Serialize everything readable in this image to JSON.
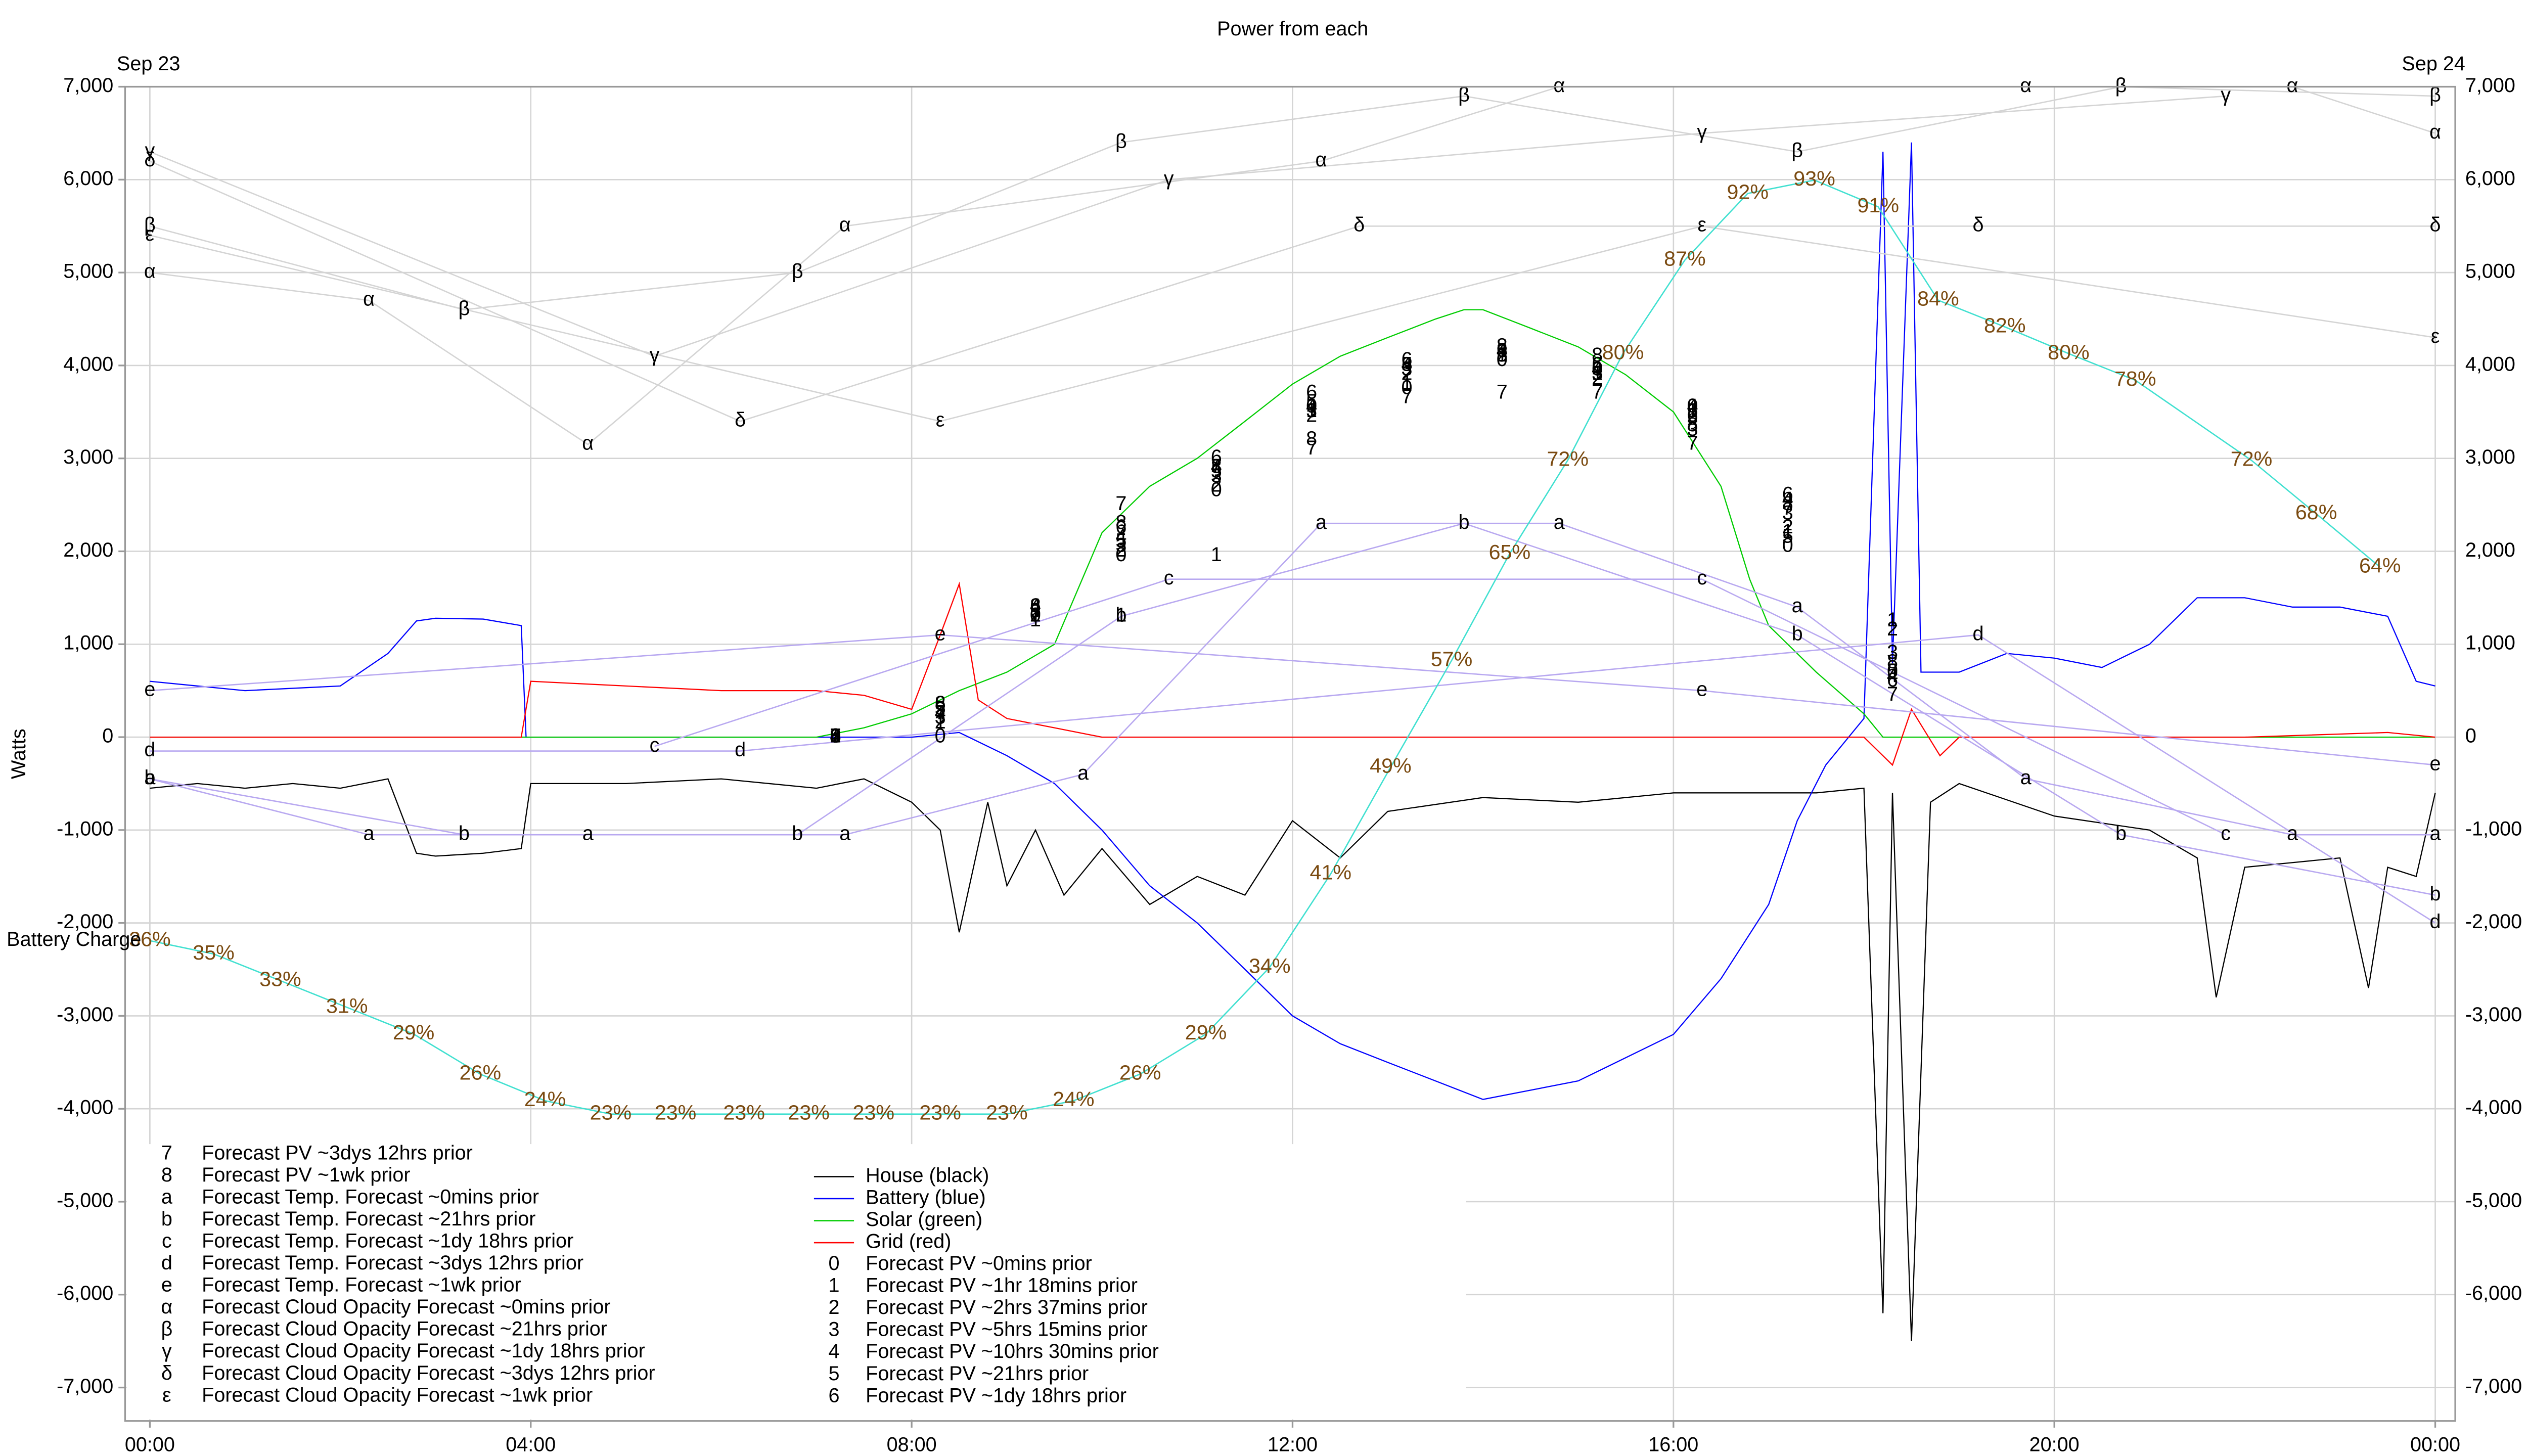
{
  "chart_data": {
    "type": "line",
    "title": "Power from each",
    "date_labels": [
      "Sep 23",
      "Sep 24"
    ],
    "ylabel": "Watts",
    "xlim": [
      -0.26,
      24.21
    ],
    "ylim": [
      -7360,
      7000
    ],
    "y2lim": [
      0,
      100
    ],
    "grid": true,
    "xticks": [
      {
        "value": 0,
        "label": "00:00"
      },
      {
        "value": 4,
        "label": "04:00"
      },
      {
        "value": 8,
        "label": "08:00"
      },
      {
        "value": 12,
        "label": "12:00"
      },
      {
        "value": 16,
        "label": "16:00"
      },
      {
        "value": 20,
        "label": "20:00"
      },
      {
        "value": 24,
        "label": "00:00"
      }
    ],
    "yticks": [
      {
        "value": -7000,
        "label": "-7,000"
      },
      {
        "value": -6000,
        "label": "-6,000"
      },
      {
        "value": -5000,
        "label": "-5,000"
      },
      {
        "value": -4000,
        "label": "-4,000"
      },
      {
        "value": -3000,
        "label": "-3,000"
      },
      {
        "value": -2000,
        "label": "-2,000"
      },
      {
        "value": -1000,
        "label": "-1,000"
      },
      0,
      {
        "value": 1000,
        "label": "1,000"
      },
      {
        "value": 2000,
        "label": "2,000"
      },
      {
        "value": 3000,
        "label": "3,000"
      },
      {
        "value": 4000,
        "label": "4,000"
      },
      {
        "value": 5000,
        "label": "5,000"
      },
      {
        "value": 6000,
        "label": "6,000"
      },
      {
        "value": 7000,
        "label": "7,000"
      }
    ],
    "series": [
      {
        "name": "House (black)",
        "color": "#000000",
        "x": [
          0,
          0.5,
          1,
          1.5,
          2,
          2.5,
          2.8,
          3,
          3.5,
          3.9,
          4,
          5,
          6,
          7,
          7.5,
          8,
          8.3,
          8.5,
          8.8,
          9,
          9.3,
          9.6,
          10,
          10.5,
          11,
          11.5,
          12,
          12.5,
          13,
          14,
          15,
          16,
          17,
          17.5,
          18,
          18.2,
          18.3,
          18.5,
          18.7,
          19,
          20,
          21,
          21.5,
          21.7,
          22,
          22.5,
          23,
          23.3,
          23.5,
          23.8,
          24
        ],
        "values": [
          -550,
          -500,
          -550,
          -500,
          -550,
          -450,
          -1250,
          -1280,
          -1250,
          -1200,
          -500,
          -500,
          -450,
          -550,
          -450,
          -700,
          -1000,
          -2100,
          -700,
          -1600,
          -1000,
          -1700,
          -1200,
          -1800,
          -1500,
          -1700,
          -900,
          -1300,
          -800,
          -650,
          -700,
          -600,
          -600,
          -600,
          -550,
          -6200,
          -600,
          -6500,
          -700,
          -500,
          -850,
          -1000,
          -1300,
          -2800,
          -1400,
          -1350,
          -1300,
          -2700,
          -1400,
          -1500,
          -600
        ]
      },
      {
        "name": "Battery (blue)",
        "color": "#0000ff",
        "x": [
          0,
          1,
          2,
          2.5,
          2.8,
          3,
          3.5,
          3.9,
          3.95,
          5,
          7,
          8,
          8.5,
          9,
          9.5,
          10,
          10.5,
          11,
          11.5,
          12,
          12.5,
          13,
          13.5,
          14,
          15,
          16,
          16.5,
          17,
          17.3,
          17.6,
          18,
          18.2,
          18.3,
          18.5,
          18.6,
          19,
          19.5,
          20,
          20.5,
          21,
          21.5,
          22,
          22.5,
          23,
          23.5,
          23.8,
          24
        ],
        "values": [
          600,
          500,
          550,
          900,
          1250,
          1280,
          1270,
          1200,
          0,
          0,
          0,
          0,
          50,
          -200,
          -500,
          -1000,
          -1600,
          -2000,
          -2500,
          -3000,
          -3300,
          -3500,
          -3700,
          -3900,
          -3700,
          -3200,
          -2600,
          -1800,
          -900,
          -300,
          200,
          6300,
          800,
          6400,
          700,
          700,
          900,
          850,
          750,
          1000,
          1500,
          1500,
          1400,
          1400,
          1300,
          600,
          550
        ]
      },
      {
        "name": "Solar (green)",
        "color": "#00cc00",
        "x": [
          0,
          7,
          7.5,
          8,
          8.5,
          9,
          9.5,
          10,
          10.5,
          11,
          11.5,
          12,
          12.5,
          13,
          13.5,
          13.8,
          14,
          14.5,
          15,
          15.5,
          16,
          16.5,
          16.8,
          17,
          17.5,
          18,
          18.2,
          24
        ],
        "values": [
          0,
          0,
          100,
          250,
          500,
          700,
          1000,
          2200,
          2700,
          3000,
          3400,
          3800,
          4100,
          4300,
          4500,
          4600,
          4600,
          4400,
          4200,
          3900,
          3500,
          2700,
          1700,
          1200,
          700,
          250,
          0,
          0
        ]
      },
      {
        "name": "Grid (red)",
        "color": "#ff0000",
        "x": [
          0,
          3.9,
          4,
          5,
          6,
          7,
          7.5,
          8,
          8.3,
          8.5,
          8.7,
          9,
          9.5,
          10,
          12,
          17,
          18,
          18.3,
          18.5,
          18.8,
          19,
          22,
          23.5,
          24
        ],
        "values": [
          0,
          0,
          600,
          550,
          500,
          500,
          450,
          300,
          1100,
          1650,
          400,
          200,
          100,
          0,
          0,
          0,
          0,
          -300,
          300,
          -200,
          0,
          0,
          50,
          0
        ]
      },
      {
        "name": "Forecast PV ~0mins prior",
        "marker": "0",
        "color": null,
        "x": [
          7.2,
          8.3,
          9.3,
          10.2,
          11.2,
          12.2,
          13.2,
          14.2,
          15.2,
          16.2,
          17.2,
          18.3
        ],
        "values": [
          0,
          0,
          1300,
          1950,
          2650,
          3550,
          3750,
          4050,
          3950,
          3550,
          2050,
          700
        ]
      },
      {
        "name": "Forecast PV ~1hr 18mins prior",
        "marker": "1",
        "color": null,
        "x": [
          7.2,
          8.3,
          9.3,
          10.2,
          11.2,
          12.2,
          13.2,
          14.2,
          15.2,
          16.2,
          17.2,
          18.3
        ],
        "values": [
          0,
          150,
          1250,
          1300,
          1950,
          3500,
          3800,
          4100,
          3900,
          3500,
          2200,
          1250
        ]
      },
      {
        "name": "Forecast PV ~2hrs 37mins prior",
        "marker": "2",
        "color": null,
        "x": [
          7.2,
          8.3,
          9.3,
          10.2,
          11.2,
          12.2,
          13.2,
          14.2,
          15.2,
          16.2,
          17.2,
          18.3
        ],
        "values": [
          0,
          150,
          1300,
          2000,
          2700,
          3450,
          3900,
          4100,
          3850,
          3450,
          2250,
          1150
        ]
      },
      {
        "name": "Forecast PV ~5hrs 15mins prior",
        "marker": "3",
        "color": null,
        "x": [
          7.2,
          8.3,
          9.3,
          10.2,
          11.2,
          12.2,
          13.2,
          14.2,
          15.2,
          16.2,
          17.2,
          18.3
        ],
        "values": [
          0,
          200,
          1350,
          2050,
          2800,
          3500,
          3950,
          4150,
          3900,
          3300,
          2400,
          900
        ]
      },
      {
        "name": "Forecast PV ~10hrs 30mins prior",
        "marker": "4",
        "color": null,
        "x": [
          7.2,
          8.3,
          9.3,
          10.2,
          11.2,
          12.2,
          13.2,
          14.2,
          15.2,
          16.2,
          17.2,
          18.3
        ],
        "values": [
          0,
          250,
          1400,
          2150,
          2900,
          3550,
          4000,
          4150,
          3950,
          3550,
          2550,
          650
        ]
      },
      {
        "name": "Forecast PV ~21hrs prior",
        "marker": "5",
        "color": null,
        "x": [
          7.2,
          8.3,
          9.3,
          10.2,
          11.2,
          12.2,
          13.2,
          14.2,
          15.2,
          16.2,
          17.2,
          18.3
        ],
        "values": [
          0,
          300,
          1350,
          2100,
          2850,
          3600,
          4000,
          4100,
          3900,
          3500,
          2150,
          700
        ]
      },
      {
        "name": "Forecast PV ~1dy 18hrs prior",
        "marker": "6",
        "color": null,
        "x": [
          7.2,
          8.3,
          9.3,
          10.2,
          11.2,
          12.2,
          13.2,
          14.2,
          15.2,
          16.2,
          17.2,
          18.3
        ],
        "values": [
          0,
          350,
          1400,
          2250,
          3000,
          3700,
          4050,
          4150,
          4000,
          3450,
          2600,
          600
        ]
      },
      {
        "name": "Forecast PV ~3dys 12hrs prior",
        "marker": "7",
        "color": null,
        "x": [
          7.2,
          8.3,
          9.3,
          10.2,
          11.2,
          12.2,
          13.2,
          14.2,
          15.2,
          16.2,
          17.2,
          18.3
        ],
        "values": [
          0,
          250,
          1300,
          2500,
          2900,
          3100,
          3650,
          3700,
          3700,
          3150,
          2450,
          450
        ]
      },
      {
        "name": "Forecast PV ~1wk prior",
        "marker": "8",
        "color": null,
        "x": [
          7.2,
          8.3,
          9.3,
          10.2,
          11.2,
          12.2,
          13.2,
          14.2,
          15.2,
          16.2,
          17.2,
          18.3
        ],
        "values": [
          0,
          350,
          1400,
          2300,
          2900,
          3200,
          4000,
          4200,
          4100,
          3350,
          2500,
          800
        ]
      },
      {
        "name": "Forecast Temp. Forecast ~0mins prior",
        "marker": "a",
        "color": "#b8a8f0",
        "x": [
          0,
          2.3,
          4.6,
          7.3,
          9.8,
          12.3,
          14.8,
          17.3,
          19.7,
          22.5,
          24
        ],
        "values": [
          -450,
          -1050,
          -1050,
          -1050,
          -400,
          2300,
          2300,
          1400,
          -450,
          -1050,
          -1050
        ]
      },
      {
        "name": "Forecast Temp. Forecast ~21hrs prior",
        "marker": "b",
        "color": "#b8a8f0",
        "x": [
          0,
          3.3,
          6.8,
          10.2,
          13.8,
          17.3,
          20.7,
          24
        ],
        "values": [
          -450,
          -1050,
          -1050,
          1300,
          2300,
          1100,
          -1050,
          -1700
        ]
      },
      {
        "name": "Forecast Temp. Forecast ~1dy 18hrs prior",
        "marker": "c",
        "color": "#b8a8f0",
        "x": [
          5.3,
          10.7,
          16.3,
          21.8
        ],
        "values": [
          -100,
          1700,
          1700,
          -1050
        ]
      },
      {
        "name": "Forecast Temp. Forecast ~3dys 12hrs prior",
        "marker": "d",
        "color": "#b8a8f0",
        "x": [
          0,
          6.2,
          19.2,
          24
        ],
        "values": [
          -150,
          -150,
          1100,
          -2000
        ]
      },
      {
        "name": "Forecast Temp. Forecast ~1wk prior",
        "marker": "e",
        "color": "#b8a8f0",
        "x": [
          0,
          8.3,
          16.3,
          24
        ],
        "values": [
          500,
          1100,
          500,
          -300
        ]
      },
      {
        "name": "Forecast Cloud Opacity Forecast ~0mins prior",
        "marker": "α",
        "color": "#d4d4d4",
        "x": [
          0,
          2.3,
          4.6,
          7.3,
          12.3,
          14.8,
          19.7,
          22.5,
          24
        ],
        "values": [
          5000,
          4700,
          3150,
          5500,
          6200,
          7000,
          7000,
          7000,
          6500
        ]
      },
      {
        "name": "Forecast Cloud Opacity Forecast ~21hrs prior",
        "marker": "β",
        "color": "#d4d4d4",
        "x": [
          0,
          3.3,
          6.8,
          10.2,
          13.8,
          17.3,
          20.7,
          24
        ],
        "values": [
          5500,
          4600,
          5000,
          6400,
          6900,
          6300,
          7000,
          6900
        ]
      },
      {
        "name": "Forecast Cloud Opacity Forecast ~1dy 18hrs prior",
        "marker": "γ",
        "color": "#d4d4d4",
        "x": [
          0,
          5.3,
          10.7,
          16.3,
          21.8
        ],
        "values": [
          6300,
          4100,
          6000,
          6500,
          6900
        ]
      },
      {
        "name": "Forecast Cloud Opacity Forecast ~3dys 12hrs prior",
        "marker": "δ",
        "color": "#d4d4d4",
        "x": [
          0,
          6.2,
          12.7,
          19.2,
          24
        ],
        "values": [
          6200,
          3400,
          5500,
          5500,
          5500
        ]
      },
      {
        "name": "Forecast Cloud Opacity Forecast ~1wk prior",
        "marker": "ε",
        "color": "#d4d4d4",
        "x": [
          0,
          8.3,
          16.3,
          24
        ],
        "values": [
          5400,
          3400,
          5500,
          4300
        ]
      }
    ],
    "battery_charge": {
      "name": "Battery Charge",
      "axis": "y2",
      "color": "#40e0d0",
      "x": [
        0,
        0.67,
        1.37,
        2.07,
        2.77,
        3.47,
        4.15,
        4.84,
        5.52,
        6.24,
        6.92,
        7.6,
        8.3,
        9.0,
        9.7,
        10.4,
        11.09,
        11.76,
        12.4,
        13.03,
        13.67,
        14.28,
        14.89,
        15.47,
        16.12,
        16.78,
        17.48,
        18.15,
        18.78,
        19.48,
        20.15,
        20.85,
        22.07,
        22.75,
        23.42
      ],
      "values": [
        36,
        35,
        33,
        31,
        29,
        26,
        24,
        23,
        23,
        23,
        23,
        23,
        23,
        23,
        24,
        26,
        29,
        34,
        41,
        49,
        57,
        65,
        72,
        80,
        87,
        92,
        93,
        91,
        84,
        82,
        80,
        78,
        72,
        68,
        64
      ],
      "value_labels": [
        "36%",
        "35%",
        "33%",
        "31%",
        "29%",
        "26%",
        "24%",
        "23%",
        "23%",
        "23%",
        "23%",
        "23%",
        "23%",
        "23%",
        "24%",
        "26%",
        "29%",
        "34%",
        "41%",
        "49%",
        "57%",
        "65%",
        "72%",
        "80%",
        "87%",
        "92%",
        "93%",
        "91%",
        "84%",
        "82%",
        "80%",
        "78%",
        "72%",
        "68%",
        "64%"
      ]
    }
  }
}
